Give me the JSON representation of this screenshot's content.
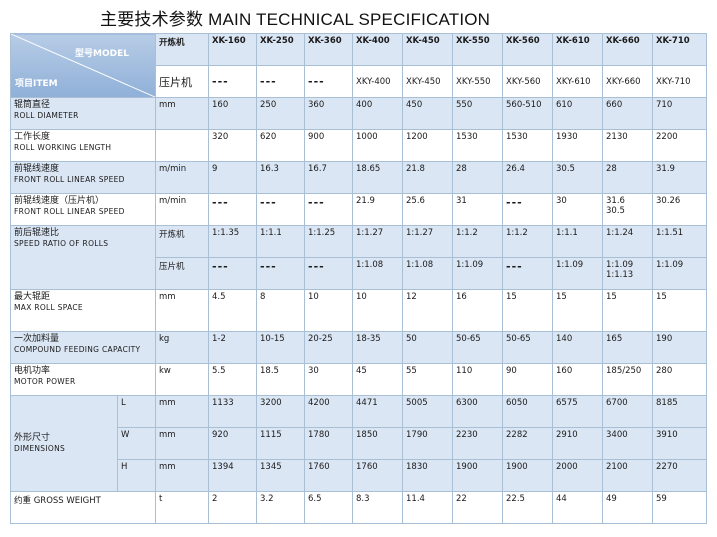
{
  "title": "主要技术参数 MAIN TECHNICAL SPECIFICATION",
  "header": {
    "model": "型号MODEL",
    "item": "项目ITEM",
    "type_mixing": "开炼机",
    "type_sheeting": "压片机",
    "mixing_models": [
      "XK-160",
      "XK-250",
      "XK-360",
      "XK-400",
      "XK-450",
      "XK-550",
      "XK-560",
      "XK-610",
      "XK-660",
      "XK-710"
    ],
    "sheeting_models": [
      "---",
      "---",
      "---",
      "XKY-400",
      "XKY-450",
      "XKY-550",
      "XKY-560",
      "XKY-610",
      "XKY-660",
      "XKY-710"
    ]
  },
  "rows": {
    "roll_diameter": {
      "zh": "辊筒直径",
      "en": "ROLL DIAMETER",
      "unit": "mm",
      "values": [
        "160",
        "250",
        "360",
        "400",
        "450",
        "550",
        "560-510",
        "610",
        "660",
        "710"
      ]
    },
    "working_length": {
      "zh": "工作长度",
      "en": "ROLL WORKING LENGTH",
      "unit": "",
      "values": [
        "320",
        "620",
        "900",
        "1000",
        "1200",
        "1530",
        "1530",
        "1930",
        "2130",
        "2200"
      ]
    },
    "front_speed": {
      "zh": "前辊线速度",
      "en": "FRONT ROLL LINEAR SPEED",
      "unit": "m/min",
      "values": [
        "9",
        "16.3",
        "16.7",
        "18.65",
        "21.8",
        "28",
        "26.4",
        "30.5",
        "28",
        "31.9"
      ]
    },
    "front_speed_sheet": {
      "zh": "前辊线速度（压片机）",
      "en": "FRONT ROLL LINEAR SPEED",
      "unit": "m/min",
      "values": [
        "---",
        "---",
        "---",
        "21.9",
        "25.6",
        "31",
        "---",
        "30",
        "31.6",
        "30.26"
      ],
      "extra_660": "30.5"
    },
    "speed_ratio": {
      "zh": "前后辊速比",
      "en": "SPEED RATIO OF ROLLS",
      "label_mixing": "开炼机",
      "label_sheeting": "压片机",
      "mixing": [
        "1:1.35",
        "1:1.1",
        "1:1.25",
        "1:1.27",
        "1:1.27",
        "1:1.2",
        "1:1.2",
        "1:1.1",
        "1:1.24",
        "1:1.51"
      ],
      "sheeting": [
        "---",
        "---",
        "---",
        "1:1.08",
        "1:1.08",
        "1:1.09",
        "---",
        "1:1.09",
        "1:1.09",
        "1:1.09"
      ],
      "sheeting_extra_660": "1:1.13"
    },
    "max_space": {
      "zh": "最大辊距",
      "en": "MAX ROLL SPACE",
      "unit": "mm",
      "values": [
        "4.5",
        "8",
        "10",
        "10",
        "12",
        "16",
        "15",
        "15",
        "15",
        "15"
      ]
    },
    "feeding": {
      "zh": "一次加料量",
      "en": "COMPOUND FEEDING CAPACITY",
      "unit": "kg",
      "values": [
        "1-2",
        "10-15",
        "20-25",
        "18-35",
        "50",
        "50-65",
        "50-65",
        "140",
        "165",
        "190"
      ]
    },
    "power": {
      "zh": "电机功率",
      "en": "MOTOR POWER",
      "unit": "kw",
      "values": [
        "5.5",
        "18.5",
        "30",
        "45",
        "55",
        "110",
        "90",
        "160",
        "185/250",
        "280"
      ]
    },
    "dimensions": {
      "zh": "外形尺寸",
      "en": "DIMENSIONS",
      "L": {
        "label": "L",
        "unit": "mm",
        "values": [
          "1133",
          "3200",
          "4200",
          "4471",
          "5005",
          "6300",
          "6050",
          "6575",
          "6700",
          "8185"
        ]
      },
      "W": {
        "label": "W",
        "unit": "mm",
        "values": [
          "920",
          "1115",
          "1780",
          "1850",
          "1790",
          "2230",
          "2282",
          "2910",
          "3400",
          "3910"
        ]
      },
      "H": {
        "label": "H",
        "unit": "mm",
        "values": [
          "1394",
          "1345",
          "1760",
          "1760",
          "1830",
          "1900",
          "1900",
          "2000",
          "2100",
          "2270"
        ]
      }
    },
    "weight": {
      "label": "约重 GROSS WEIGHT",
      "unit": "t",
      "values": [
        "2",
        "3.2",
        "6.5",
        "8.3",
        "11.4",
        "22",
        "22.5",
        "44",
        "49",
        "59"
      ]
    }
  }
}
